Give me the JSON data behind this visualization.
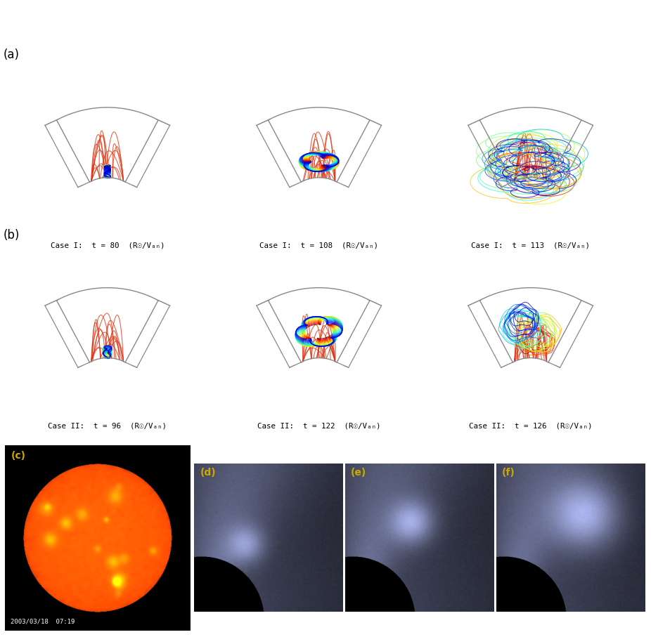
{
  "figure_width": 9.26,
  "figure_height": 9.17,
  "background_color": "#ffffff",
  "case1_labels": [
    "Case I:  t = 80  (R☉/Vₐₙ)",
    "Case I:  t = 108  (R☉/Vₐₙ)",
    "Case I:  t = 113  (R☉/Vₐₙ)"
  ],
  "case2_labels": [
    "Case II:  t = 96  (R☉/Vₐₙ)",
    "Case II:  t = 122  (R☉/Vₐₙ)",
    "Case II:  t = 126  (R☉/Vₐₙ)"
  ],
  "date_label": "2003/03/18  07:19",
  "boundary_color": "#888888",
  "arcade_color": "#dd3311",
  "label_color_obs": "#ccaa00"
}
